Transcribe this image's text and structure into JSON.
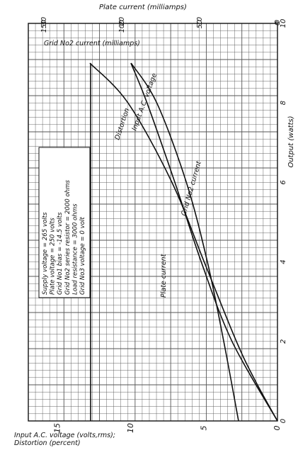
{
  "chart_data": {
    "type": "line",
    "orientation": "rotated-90",
    "header": {
      "plate_axis_title": "Plate current (milliamps)",
      "grid2_axis_title": "Grid No2 current (milliamps)",
      "output_axis_title": "Output (watts)",
      "input_axis_title_1": "Input A.C. voltage (volts,rms);",
      "input_axis_title_2": "Distortion (percent)"
    },
    "output_axis": {
      "range": [
        0,
        10
      ],
      "tick_labels": [
        "0",
        "2",
        "4",
        "6",
        "8",
        "10"
      ]
    },
    "input_axis": {
      "range": [
        0,
        17
      ],
      "tick_labels": [
        "15",
        "10",
        "5",
        "0"
      ]
    },
    "plate_axis": {
      "range": [
        0,
        160
      ],
      "tick_labels": [
        "150",
        "100",
        "50",
        "0"
      ]
    },
    "grid2_axis": {
      "range": [
        0,
        32
      ],
      "tick_labels": [
        "30",
        "20",
        "10",
        "0"
      ]
    },
    "conditions": [
      "Supply voltage = 265 volts",
      "Plate voltage = 250 volts",
      "Grid No1 bias = -14.5 volts",
      "Grid No2 series resistor = 2000 ohms",
      "Load resistance = 3000 ohms",
      "Grid No3 voltage = 0 volt"
    ],
    "series": [
      {
        "name": "Plate current",
        "axis": "plate",
        "output": [
          0,
          2,
          4,
          6,
          8,
          9
        ],
        "value": [
          120,
          120,
          120,
          120,
          120,
          120
        ]
      },
      {
        "name": "Grid No2 current",
        "axis": "grid2",
        "output": [
          0,
          2,
          4,
          6,
          8,
          9
        ],
        "value": [
          5,
          6.9,
          9.0,
          11.7,
          15.5,
          18.8
        ]
      },
      {
        "name": "Input A.C. voltage",
        "axis": "input",
        "output": [
          0,
          2,
          4,
          6,
          8,
          9
        ],
        "value": [
          0,
          3.1,
          5.2,
          7.0,
          8.9,
          10.0
        ]
      },
      {
        "name": "Distortion",
        "axis": "input",
        "output": [
          0,
          1,
          2,
          4,
          6,
          8,
          9
        ],
        "value": [
          0,
          1.5,
          2.8,
          5.0,
          7.2,
          10.2,
          12.8
        ]
      }
    ]
  }
}
